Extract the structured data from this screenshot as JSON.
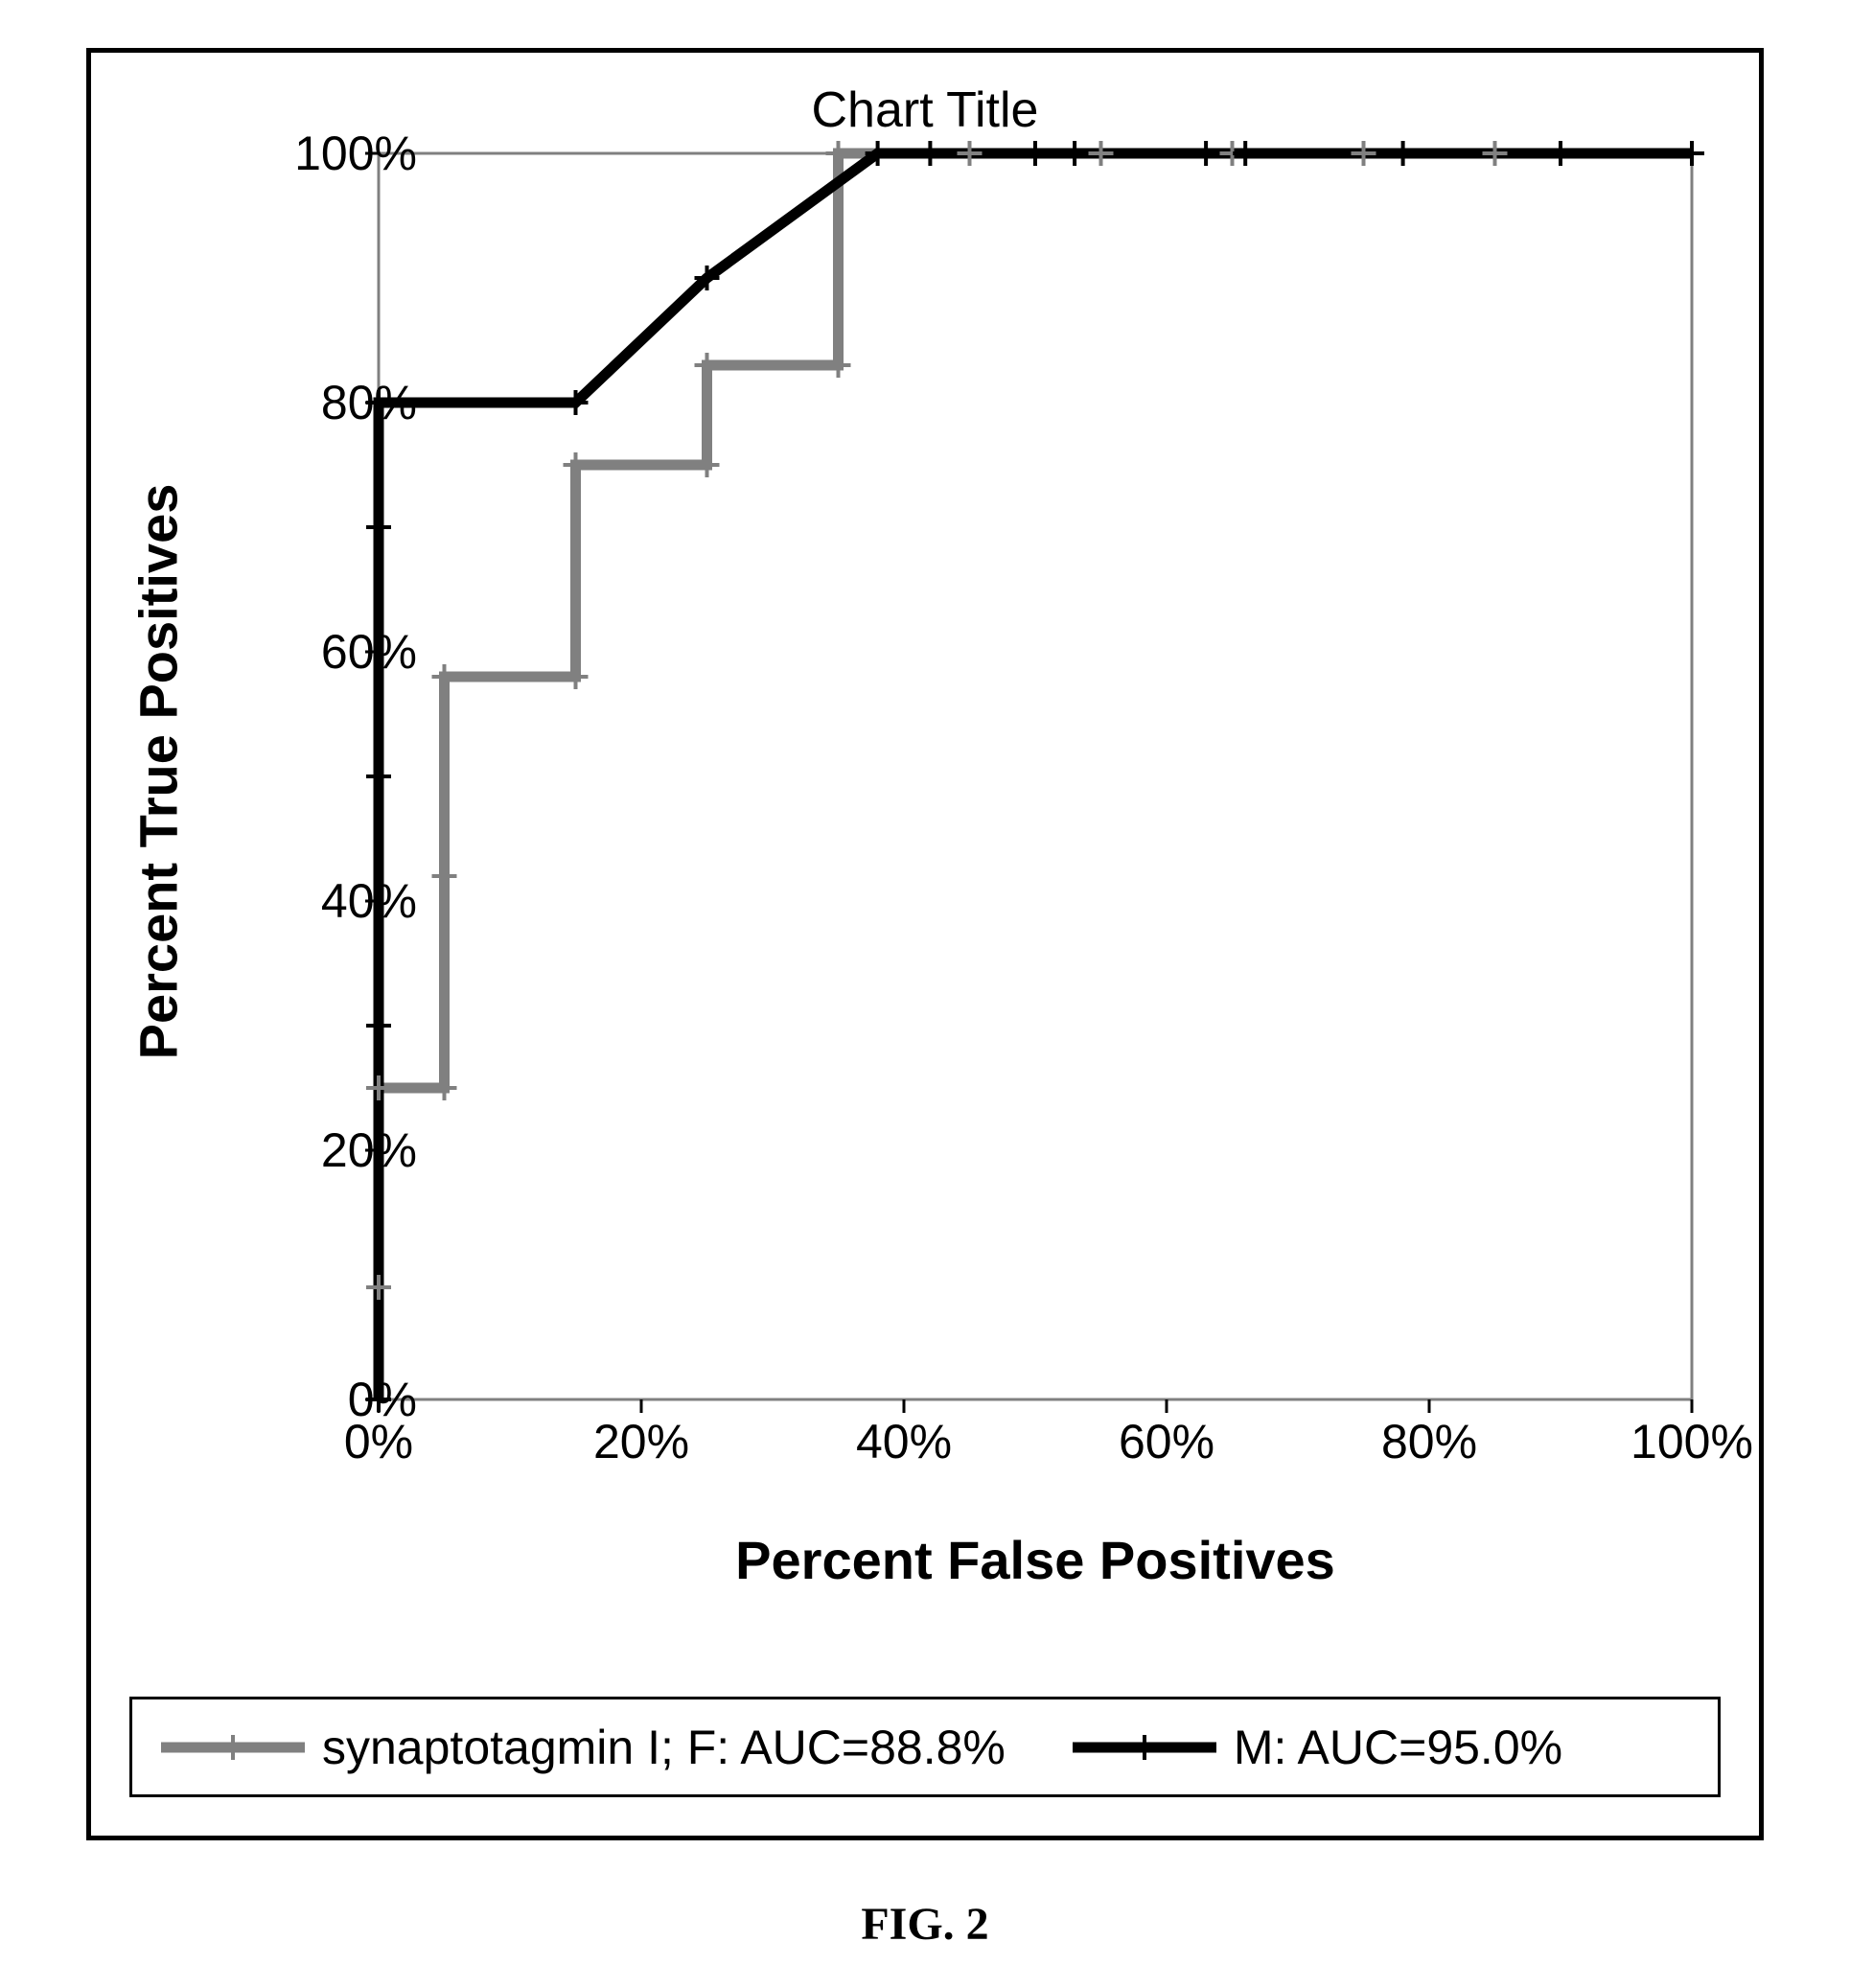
{
  "figure_caption": "FIG. 2",
  "chart": {
    "type": "roc-step-line",
    "title": "Chart Title",
    "title_fontsize": 52,
    "title_color": "#000000",
    "background_color": "#ffffff",
    "panel_border_color": "#000000",
    "panel_border_width": 5,
    "plot_border_color": "#808080",
    "plot_border_width": 3,
    "x_axis": {
      "title": "Percent False Positives",
      "title_fontsize": 56,
      "title_fontweight": "bold",
      "min": 0,
      "max": 100,
      "tick_step": 20,
      "tick_labels": [
        "0%",
        "20%",
        "40%",
        "60%",
        "80%",
        "100%"
      ],
      "tick_fontsize": 50,
      "tick_color": "#000000",
      "tick_mark_len": 14
    },
    "y_axis": {
      "title": "Percent True Positives",
      "title_fontsize": 56,
      "title_fontweight": "bold",
      "min": 0,
      "max": 100,
      "tick_step": 20,
      "tick_labels": [
        "0%",
        "20%",
        "40%",
        "60%",
        "80%",
        "100%"
      ],
      "tick_fontsize": 50,
      "tick_color": "#000000",
      "tick_mark_len": 14
    },
    "gridline_top": {
      "at_y": 100,
      "color": "#808080",
      "width": 3
    },
    "marker": {
      "type": "plus",
      "size": 26,
      "stroke_width": 4
    },
    "series": [
      {
        "id": "series_f",
        "label": "synaptotagmin I; F: AUC=88.8%",
        "color": "#808080",
        "line_width": 11,
        "points": [
          {
            "x": 0,
            "y": 0
          },
          {
            "x": 0,
            "y": 9
          },
          {
            "x": 0,
            "y": 25
          },
          {
            "x": 5,
            "y": 25
          },
          {
            "x": 5,
            "y": 42
          },
          {
            "x": 5,
            "y": 58
          },
          {
            "x": 15,
            "y": 58
          },
          {
            "x": 15,
            "y": 75
          },
          {
            "x": 25,
            "y": 75
          },
          {
            "x": 25,
            "y": 83
          },
          {
            "x": 35,
            "y": 83
          },
          {
            "x": 35,
            "y": 100
          },
          {
            "x": 45,
            "y": 100
          },
          {
            "x": 55,
            "y": 100
          },
          {
            "x": 65,
            "y": 100
          },
          {
            "x": 75,
            "y": 100
          },
          {
            "x": 85,
            "y": 100
          },
          {
            "x": 100,
            "y": 100
          }
        ]
      },
      {
        "id": "series_m",
        "label": "M: AUC=95.0%",
        "color": "#000000",
        "line_width": 11,
        "points": [
          {
            "x": 0,
            "y": 0
          },
          {
            "x": 0,
            "y": 30
          },
          {
            "x": 0,
            "y": 50
          },
          {
            "x": 0,
            "y": 70
          },
          {
            "x": 0,
            "y": 80
          },
          {
            "x": 15,
            "y": 80
          },
          {
            "x": 25,
            "y": 90
          },
          {
            "x": 38,
            "y": 100
          },
          {
            "x": 42,
            "y": 100
          },
          {
            "x": 50,
            "y": 100
          },
          {
            "x": 53,
            "y": 100
          },
          {
            "x": 63,
            "y": 100
          },
          {
            "x": 66,
            "y": 100
          },
          {
            "x": 78,
            "y": 100
          },
          {
            "x": 90,
            "y": 100
          },
          {
            "x": 100,
            "y": 100
          }
        ]
      }
    ],
    "legend": {
      "border_color": "#000000",
      "border_width": 3,
      "fontsize": 50,
      "swatch_line_width": 11,
      "swatch_length": 150
    }
  }
}
